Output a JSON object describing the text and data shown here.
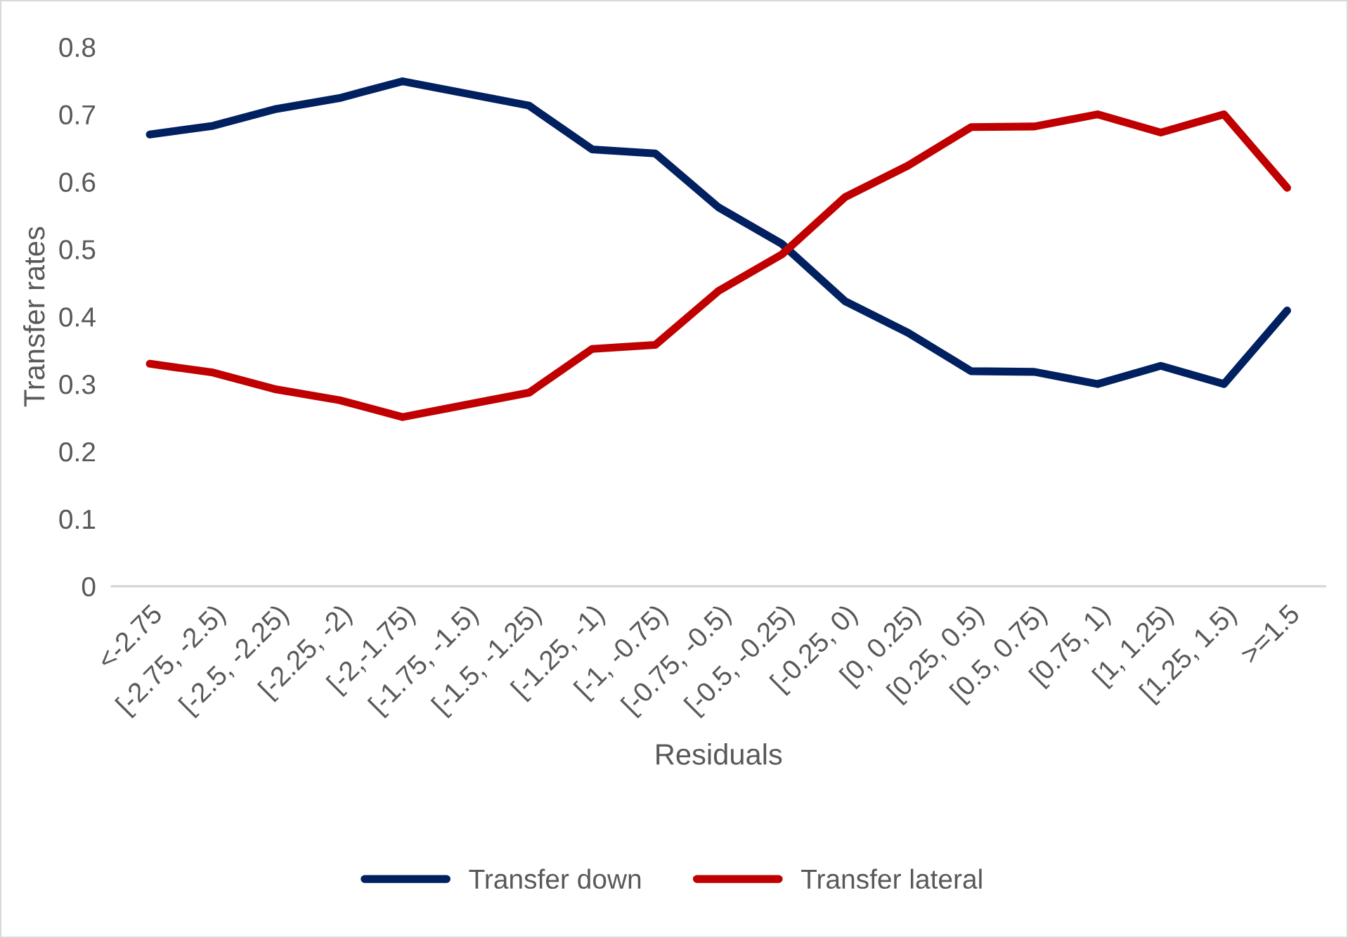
{
  "chart_data": {
    "type": "line",
    "xlabel": "Residuals",
    "ylabel": "Transfer rates",
    "categories": [
      "<-2.75",
      "[-2.75, -2.5)",
      "[-2.5, -2.25)",
      "[-2.25, -2)",
      "[-2,-1.75)",
      "[-1.75, -1.5)",
      "[-1.5, -1.25)",
      "[-1.25, -1)",
      "[-1, -0.75)",
      "[-0.75, -0.5)",
      "[-0.5, -0.25)",
      "[-0.25, 0)",
      "[0, 0.25)",
      "[0.25, 0.5)",
      "[0.5, 0.75)",
      "[0.75, 1)",
      "[1, 1.25)",
      "[1.25, 1.5)",
      ">=1.5"
    ],
    "series": [
      {
        "name": "Transfer down",
        "color": "#002060",
        "values": [
          0.67,
          0.683,
          0.708,
          0.724,
          0.749,
          0.731,
          0.713,
          0.648,
          0.642,
          0.562,
          0.508,
          0.423,
          0.376,
          0.319,
          0.318,
          0.3,
          0.327,
          0.3,
          0.409
        ]
      },
      {
        "name": "Transfer lateral",
        "color": "#c00000",
        "values": [
          0.33,
          0.317,
          0.292,
          0.276,
          0.251,
          0.269,
          0.287,
          0.352,
          0.358,
          0.438,
          0.492,
          0.577,
          0.624,
          0.681,
          0.682,
          0.7,
          0.673,
          0.7,
          0.591
        ]
      }
    ],
    "ylim": [
      0,
      0.8
    ],
    "yticks": [
      0,
      0.1,
      0.2,
      0.3,
      0.4,
      0.5,
      0.6,
      0.7,
      0.8
    ],
    "grid": false,
    "legend": "bottom",
    "marker": "none",
    "line_style": "solid"
  }
}
